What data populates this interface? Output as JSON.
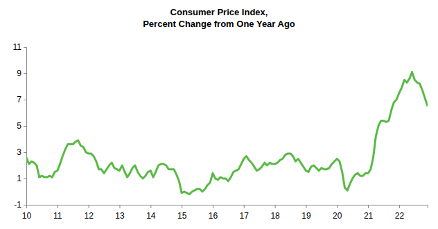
{
  "chart_data": {
    "type": "line",
    "title": "Consumer Price Index,",
    "subtitle": "Percent Change from One Year Ago",
    "categories": [
      "10",
      null,
      null,
      null,
      null,
      null,
      null,
      null,
      null,
      null,
      null,
      null,
      "11",
      null,
      null,
      null,
      null,
      null,
      null,
      null,
      null,
      null,
      null,
      null,
      "12",
      null,
      null,
      null,
      null,
      null,
      null,
      null,
      null,
      null,
      null,
      null,
      "13",
      null,
      null,
      null,
      null,
      null,
      null,
      null,
      null,
      null,
      null,
      null,
      "14",
      null,
      null,
      null,
      null,
      null,
      null,
      null,
      null,
      null,
      null,
      null,
      "15",
      null,
      null,
      null,
      null,
      null,
      null,
      null,
      null,
      null,
      null,
      null,
      "16",
      null,
      null,
      null,
      null,
      null,
      null,
      null,
      null,
      null,
      null,
      null,
      "17",
      null,
      null,
      null,
      null,
      null,
      null,
      null,
      null,
      null,
      null,
      null,
      "18",
      null,
      null,
      null,
      null,
      null,
      null,
      null,
      null,
      null,
      null,
      null,
      "19",
      null,
      null,
      null,
      null,
      null,
      null,
      null,
      null,
      null,
      null,
      null,
      "20",
      null,
      null,
      null,
      null,
      null,
      null,
      null,
      null,
      null,
      null,
      null,
      "21",
      null,
      null,
      null,
      null,
      null,
      null,
      null,
      null,
      null,
      null,
      null,
      "22",
      null,
      null,
      null,
      null,
      null,
      null,
      null,
      null,
      null,
      null,
      null
    ],
    "values": [
      2.6,
      2.1,
      2.3,
      2.2,
      2.0,
      1.1,
      1.2,
      1.1,
      1.1,
      1.2,
      1.1,
      1.5,
      1.6,
      2.1,
      2.7,
      3.2,
      3.6,
      3.6,
      3.6,
      3.8,
      3.9,
      3.5,
      3.4,
      3.0,
      2.9,
      2.9,
      2.7,
      2.3,
      1.7,
      1.7,
      1.4,
      1.7,
      2.0,
      2.2,
      1.8,
      1.7,
      1.6,
      2.0,
      1.5,
      1.1,
      1.4,
      1.8,
      2.0,
      1.5,
      1.2,
      1.0,
      1.2,
      1.5,
      1.6,
      1.1,
      1.5,
      2.0,
      2.1,
      2.1,
      2.0,
      1.7,
      1.7,
      1.7,
      1.3,
      0.8,
      -0.1,
      0.0,
      -0.1,
      -0.2,
      0.0,
      0.1,
      0.2,
      0.2,
      0.0,
      0.2,
      0.5,
      0.7,
      1.4,
      1.0,
      0.9,
      1.1,
      1.0,
      1.0,
      0.8,
      1.1,
      1.5,
      1.6,
      1.7,
      2.1,
      2.5,
      2.7,
      2.4,
      2.2,
      1.9,
      1.6,
      1.7,
      1.9,
      2.2,
      2.0,
      2.2,
      2.1,
      2.1,
      2.2,
      2.4,
      2.5,
      2.8,
      2.9,
      2.9,
      2.7,
      2.3,
      2.5,
      2.2,
      1.9,
      1.6,
      1.5,
      1.9,
      2.0,
      1.8,
      1.6,
      1.8,
      1.7,
      1.7,
      1.8,
      2.1,
      2.3,
      2.5,
      2.3,
      1.5,
      0.3,
      0.1,
      0.6,
      1.0,
      1.3,
      1.4,
      1.2,
      1.2,
      1.4,
      1.4,
      1.7,
      2.6,
      4.2,
      5.0,
      5.4,
      5.4,
      5.3,
      5.4,
      6.2,
      6.8,
      7.0,
      7.5,
      7.9,
      8.5,
      8.3,
      8.6,
      9.1,
      8.5,
      8.3,
      8.2,
      7.7,
      7.1,
      6.5
    ],
    "color": "#5ab946",
    "ylim": [
      -1,
      11
    ],
    "yticks": [
      -1,
      1,
      3,
      5,
      7,
      9,
      11
    ],
    "grid": false
  }
}
